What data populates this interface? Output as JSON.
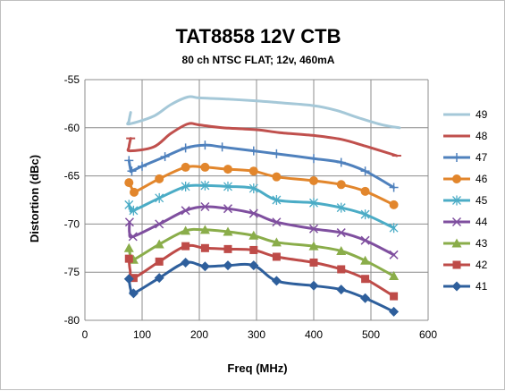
{
  "chart_data": {
    "type": "line",
    "title": "TAT8858 12V CTB",
    "subtitle": "80 ch NTSC FLAT; 12v, 460mA",
    "xlabel": "Freq (MHz)",
    "ylabel": "Distortion (dBc)",
    "xlim": [
      0,
      600
    ],
    "ylim": [
      -80,
      -55
    ],
    "x_ticks": [
      0,
      100,
      200,
      300,
      400,
      500,
      600
    ],
    "y_ticks": [
      -55,
      -60,
      -65,
      -70,
      -75,
      -80
    ],
    "grid": "horizontal and vertical",
    "legend_position": "right",
    "series": [
      {
        "name": "49",
        "color": "#a5c8d8",
        "marker": "none",
        "hook": [
          [
            80,
            -58.4
          ],
          [
            77,
            -59.3
          ],
          [
            78,
            -59.6
          ]
        ],
        "points": [
          [
            80,
            -59.6
          ],
          [
            120,
            -58.8
          ],
          [
            150,
            -57.6
          ],
          [
            180,
            -56.8
          ],
          [
            200,
            -56.9
          ],
          [
            240,
            -57.0
          ],
          [
            300,
            -57.2
          ],
          [
            340,
            -57.4
          ],
          [
            400,
            -57.7
          ],
          [
            440,
            -58.2
          ],
          [
            480,
            -59.0
          ],
          [
            520,
            -59.7
          ],
          [
            550,
            -60.0
          ]
        ]
      },
      {
        "name": "48",
        "color": "#c0504d",
        "marker": "dash",
        "hook": [
          [
            80,
            -61.1
          ],
          [
            77,
            -62.0
          ],
          [
            79,
            -62.4
          ]
        ],
        "points": [
          [
            80,
            -62.4
          ],
          [
            120,
            -62.0
          ],
          [
            150,
            -60.6
          ],
          [
            180,
            -59.6
          ],
          [
            200,
            -59.7
          ],
          [
            240,
            -60.0
          ],
          [
            300,
            -60.2
          ],
          [
            340,
            -60.5
          ],
          [
            400,
            -60.8
          ],
          [
            448,
            -61.2
          ],
          [
            490,
            -61.9
          ],
          [
            545,
            -62.9
          ]
        ]
      },
      {
        "name": "47",
        "color": "#4f81bd",
        "marker": "plus",
        "hook": [
          [
            77,
            -63.4
          ],
          [
            80,
            -64.4
          ],
          [
            82,
            -64.5
          ]
        ],
        "points": [
          [
            82,
            -64.5
          ],
          [
            100,
            -64.0
          ],
          [
            140,
            -63.0
          ],
          [
            176,
            -62.1
          ],
          [
            210,
            -61.8
          ],
          [
            240,
            -62.0
          ],
          [
            295,
            -62.4
          ],
          [
            335,
            -62.7
          ],
          [
            400,
            -63.2
          ],
          [
            448,
            -63.6
          ],
          [
            490,
            -64.5
          ],
          [
            540,
            -66.2
          ]
        ]
      },
      {
        "name": "46",
        "color": "#e2862c",
        "marker": "circle",
        "hook": [
          [
            77,
            -65.7
          ],
          [
            83,
            -66.4
          ],
          [
            86,
            -66.7
          ]
        ],
        "points": [
          [
            86,
            -66.7
          ],
          [
            130,
            -65.3
          ],
          [
            176,
            -64.1
          ],
          [
            210,
            -64.1
          ],
          [
            250,
            -64.3
          ],
          [
            295,
            -64.5
          ],
          [
            335,
            -65.1
          ],
          [
            400,
            -65.5
          ],
          [
            448,
            -65.9
          ],
          [
            490,
            -66.6
          ],
          [
            540,
            -68.0
          ]
        ]
      },
      {
        "name": "45",
        "color": "#4bacc6",
        "marker": "asterisk",
        "hook": [
          [
            77,
            -68.0
          ],
          [
            80,
            -68.5
          ],
          [
            85,
            -68.6
          ]
        ],
        "points": [
          [
            85,
            -68.6
          ],
          [
            130,
            -67.3
          ],
          [
            176,
            -66.1
          ],
          [
            210,
            -66.0
          ],
          [
            250,
            -66.1
          ],
          [
            295,
            -66.3
          ],
          [
            335,
            -67.5
          ],
          [
            400,
            -67.8
          ],
          [
            448,
            -68.3
          ],
          [
            490,
            -69.0
          ],
          [
            540,
            -70.4
          ]
        ]
      },
      {
        "name": "44",
        "color": "#7f4f9f",
        "marker": "x",
        "hook": [
          [
            78,
            -69.8
          ],
          [
            78,
            -70.9
          ],
          [
            84,
            -71.3
          ]
        ],
        "points": [
          [
            84,
            -71.3
          ],
          [
            130,
            -70.0
          ],
          [
            176,
            -68.6
          ],
          [
            210,
            -68.2
          ],
          [
            250,
            -68.4
          ],
          [
            295,
            -68.9
          ],
          [
            335,
            -69.8
          ],
          [
            400,
            -70.5
          ],
          [
            448,
            -70.9
          ],
          [
            490,
            -71.7
          ],
          [
            540,
            -73.2
          ]
        ]
      },
      {
        "name": "43",
        "color": "#8aad4a",
        "marker": "triangle",
        "hook": [
          [
            77,
            -72.5
          ],
          [
            80,
            -73.4
          ],
          [
            85,
            -73.7
          ]
        ],
        "points": [
          [
            85,
            -73.7
          ],
          [
            130,
            -72.1
          ],
          [
            176,
            -70.7
          ],
          [
            210,
            -70.6
          ],
          [
            250,
            -70.8
          ],
          [
            295,
            -71.2
          ],
          [
            335,
            -71.9
          ],
          [
            400,
            -72.3
          ],
          [
            448,
            -72.8
          ],
          [
            490,
            -73.8
          ],
          [
            540,
            -75.4
          ]
        ]
      },
      {
        "name": "42",
        "color": "#be4b48",
        "marker": "square",
        "hook": [
          [
            77,
            -73.6
          ],
          [
            79,
            -74.8
          ],
          [
            85,
            -75.6
          ]
        ],
        "points": [
          [
            85,
            -75.6
          ],
          [
            130,
            -73.9
          ],
          [
            176,
            -72.3
          ],
          [
            210,
            -72.5
          ],
          [
            250,
            -72.6
          ],
          [
            295,
            -72.7
          ],
          [
            335,
            -73.4
          ],
          [
            400,
            -74.0
          ],
          [
            448,
            -74.7
          ],
          [
            490,
            -75.7
          ],
          [
            540,
            -77.5
          ]
        ]
      },
      {
        "name": "41",
        "color": "#2e5f9c",
        "marker": "diamond",
        "hook": [
          [
            77,
            -75.7
          ],
          [
            80,
            -76.8
          ],
          [
            85,
            -77.2
          ]
        ],
        "points": [
          [
            85,
            -77.2
          ],
          [
            130,
            -75.6
          ],
          [
            176,
            -74.0
          ],
          [
            210,
            -74.4
          ],
          [
            250,
            -74.3
          ],
          [
            295,
            -74.3
          ],
          [
            335,
            -75.9
          ],
          [
            400,
            -76.4
          ],
          [
            448,
            -76.8
          ],
          [
            490,
            -77.7
          ],
          [
            540,
            -79.1
          ]
        ]
      }
    ]
  }
}
